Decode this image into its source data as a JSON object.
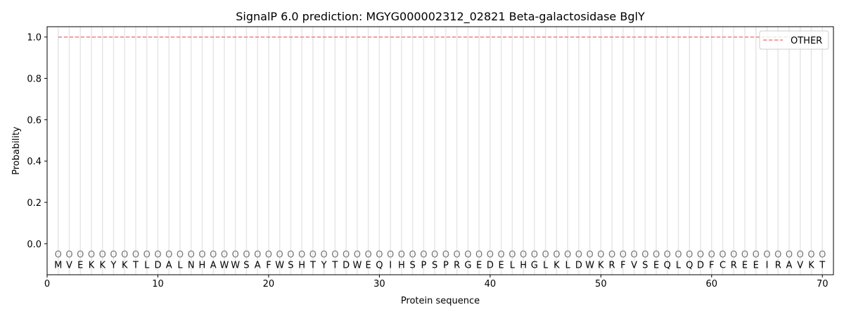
{
  "chart_data": {
    "type": "line",
    "title": "SignalP 6.0 prediction: MGYG000002312_02821 Beta-galactosidase BglY",
    "xlabel": "Protein sequence",
    "ylabel": "Probability",
    "xlim": [
      0,
      71
    ],
    "ylim": [
      -0.15,
      1.05
    ],
    "xticks": [
      0,
      10,
      20,
      30,
      40,
      50,
      60,
      70
    ],
    "yticks": [
      0.0,
      0.2,
      0.4,
      0.6,
      0.8,
      1.0
    ],
    "ytick_labels": [
      "0.0",
      "0.2",
      "0.4",
      "0.6",
      "0.8",
      "1.0"
    ],
    "sequence": "MVEKKYKTLDALNHAWWSAFWSHTYTDWEQIHSPSPRGEDELHGLKLDWKRFVSEQLQDFCREEIRAVKT",
    "region_label": "O",
    "series": [
      {
        "name": "OTHER",
        "color": "#f08080",
        "style": "dashed",
        "x_start": 1,
        "x_end": 70,
        "value": 1.0
      }
    ],
    "legend_position": "top-right",
    "grid": "vertical lines at each residue"
  }
}
